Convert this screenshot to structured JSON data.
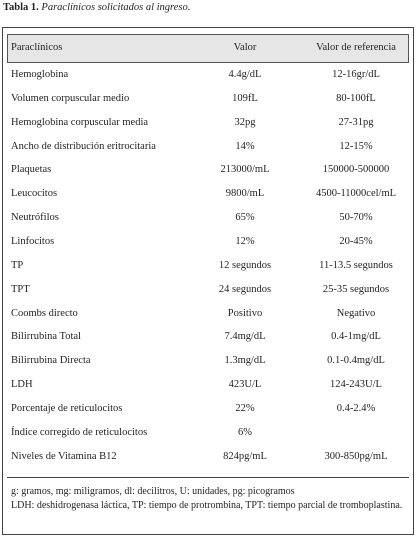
{
  "header": {
    "caption_label": "Tabla 1.",
    "caption_text": "Paraclínicos solicitados al ingreso."
  },
  "table": {
    "columns": [
      "Paraclínicos",
      "Valor",
      "Valor de referencia"
    ],
    "rows": [
      [
        "Hemoglobina",
        "4.4g/dL",
        "12-16gr/dL"
      ],
      [
        "Volumen corpuscular medio",
        "109fL",
        "80-100fL"
      ],
      [
        "Hemoglobina corpuscular media",
        "32pg",
        "27-31pg"
      ],
      [
        "Ancho de distribución eritrocitaria",
        "14%",
        "12-15%"
      ],
      [
        "Plaquetas",
        "213000/mL",
        "150000-500000"
      ],
      [
        "Leucocitos",
        "9800/mL",
        "4500-11000cel/mL"
      ],
      [
        "Neutrófilos",
        "65%",
        "50-70%"
      ],
      [
        "Linfocitos",
        "12%",
        "20-45%"
      ],
      [
        "TP",
        "12 segundos",
        "11-13.5 segundos"
      ],
      [
        "TPT",
        "24 segundos",
        "25-35 segundos"
      ],
      [
        "Coombs directo",
        "Positivo",
        "Negativo"
      ],
      [
        "Bilirrubina Total",
        "7.4mg/dL",
        "0.4-1mg/dL"
      ],
      [
        "Bilirrubina Directa",
        "1.3mg/dL",
        "0.1-0.4mg/dL"
      ],
      [
        "LDH",
        "423U/L",
        "124-243U/L"
      ],
      [
        "Porcentaje de reticulocitos",
        "22%",
        "0.4-2.4%"
      ],
      [
        "Índice corregido de reticulocitos",
        "6%"
      ],
      [
        "Niveles de Vitamina B12",
        "824pg/mL",
        "300-850pg/mL"
      ]
    ]
  },
  "footnotes": [
    "g: gramos, mg: miligramos, dl: decilitros, U: unidades, pg: picogramos",
    "LDH: deshidrogenasa láctica, TP: tiempo de protrombina, TPT: tiempo parcial de tromboplastina."
  ]
}
